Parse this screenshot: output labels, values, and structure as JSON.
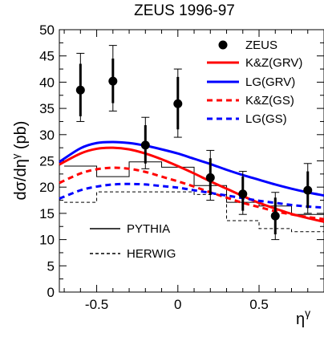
{
  "chart_data": {
    "type": "line",
    "title": "ZEUS 1996-97",
    "xlabel": "η^γ",
    "ylabel": "dσ/dη^γ  (pb)",
    "xlim": [
      -0.73,
      0.9
    ],
    "ylim": [
      0,
      50
    ],
    "x_ticks": [
      -0.5,
      0,
      0.5
    ],
    "x_tick_labels": [
      "-0.5",
      "0",
      "0.5"
    ],
    "y_ticks": [
      0,
      5,
      10,
      15,
      20,
      25,
      30,
      35,
      40,
      45,
      50
    ],
    "y_tick_labels": [
      "0",
      "5",
      "10",
      "15",
      "20",
      "25",
      "30",
      "35",
      "40",
      "45",
      "50"
    ],
    "grid": false,
    "legend_position": "top-right",
    "data_points": {
      "name": "ZEUS",
      "color": "#000000",
      "points": [
        {
          "x": -0.6,
          "y": 38.5,
          "stat_lo": 33.5,
          "stat_hi": 43.5,
          "tot_lo": 32.5,
          "tot_hi": 45.5
        },
        {
          "x": -0.4,
          "y": 40.2,
          "stat_lo": 36.0,
          "stat_hi": 44.5,
          "tot_lo": 34.5,
          "tot_hi": 47.0
        },
        {
          "x": -0.2,
          "y": 28.0,
          "stat_lo": 24.5,
          "stat_hi": 31.8,
          "tot_lo": 23.5,
          "tot_hi": 33.3
        },
        {
          "x": 0.0,
          "y": 35.9,
          "stat_lo": 31.0,
          "stat_hi": 41.0,
          "tot_lo": 29.5,
          "tot_hi": 42.5
        },
        {
          "x": 0.2,
          "y": 21.8,
          "stat_lo": 18.5,
          "stat_hi": 25.5,
          "tot_lo": 17.5,
          "tot_hi": 27.0
        },
        {
          "x": 0.4,
          "y": 18.7,
          "stat_lo": 15.5,
          "stat_hi": 22.0,
          "tot_lo": 14.8,
          "tot_hi": 23.0
        },
        {
          "x": 0.6,
          "y": 14.5,
          "stat_lo": 11.0,
          "stat_hi": 18.0,
          "tot_lo": 10.0,
          "tot_hi": 19.0
        },
        {
          "x": 0.8,
          "y": 19.4,
          "stat_lo": 16.0,
          "stat_hi": 23.0,
          "tot_lo": 15.0,
          "tot_hi": 24.5
        }
      ]
    },
    "curves": [
      {
        "name": "K&Z(GRV)",
        "color": "#ff0000",
        "style": "solid",
        "x": [
          -0.73,
          -0.6,
          -0.5,
          -0.4,
          -0.3,
          -0.2,
          -0.1,
          0.0,
          0.1,
          0.2,
          0.3,
          0.4,
          0.5,
          0.6,
          0.7,
          0.8,
          0.9
        ],
        "y": [
          24.3,
          26.4,
          27.3,
          27.5,
          27.2,
          26.4,
          25.3,
          24.0,
          22.6,
          21.1,
          19.7,
          18.3,
          17.0,
          15.9,
          14.9,
          14.1,
          13.4
        ]
      },
      {
        "name": "LG(GRV)",
        "color": "#0000ff",
        "style": "solid",
        "x": [
          -0.73,
          -0.6,
          -0.5,
          -0.4,
          -0.3,
          -0.2,
          -0.1,
          0.0,
          0.1,
          0.2,
          0.3,
          0.4,
          0.5,
          0.6,
          0.7,
          0.8,
          0.9
        ],
        "y": [
          24.8,
          27.4,
          28.4,
          28.6,
          28.4,
          27.9,
          27.2,
          26.4,
          25.4,
          24.4,
          23.3,
          22.3,
          21.4,
          20.5,
          19.7,
          19.0,
          18.4
        ]
      },
      {
        "name": "K&Z(GS)",
        "color": "#ff0000",
        "style": "dashed",
        "x": [
          -0.73,
          -0.6,
          -0.5,
          -0.4,
          -0.3,
          -0.2,
          -0.1,
          0.0,
          0.1,
          0.2,
          0.3,
          0.4,
          0.5,
          0.6,
          0.7,
          0.8,
          0.9
        ],
        "y": [
          20.8,
          22.6,
          23.4,
          23.7,
          23.5,
          22.9,
          22.0,
          21.1,
          20.1,
          19.0,
          18.0,
          17.0,
          16.2,
          15.4,
          14.8,
          14.3,
          13.9
        ]
      },
      {
        "name": "LG(GS)",
        "color": "#0000ff",
        "style": "dashed",
        "x": [
          -0.73,
          -0.6,
          -0.5,
          -0.4,
          -0.3,
          -0.2,
          -0.1,
          0.0,
          0.1,
          0.2,
          0.3,
          0.4,
          0.5,
          0.6,
          0.7,
          0.8,
          0.9
        ],
        "y": [
          17.8,
          19.4,
          20.1,
          20.5,
          20.6,
          20.5,
          20.2,
          19.9,
          19.4,
          18.9,
          18.4,
          17.9,
          17.4,
          17.0,
          16.6,
          16.3,
          16.1
        ]
      }
    ],
    "histograms": [
      {
        "name": "PYTHIA",
        "color": "#000000",
        "style": "solid",
        "edges": [
          -0.7,
          -0.5,
          -0.3,
          -0.1,
          0.1,
          0.3,
          0.5,
          0.7,
          0.9
        ],
        "values": [
          24.0,
          22.0,
          24.8,
          23.8,
          20.3,
          17.1,
          16.4,
          14.8
        ]
      },
      {
        "name": "HERWIG",
        "color": "#000000",
        "style": "dashed",
        "edges": [
          -0.7,
          -0.5,
          -0.3,
          -0.1,
          0.1,
          0.3,
          0.5,
          0.7,
          0.9
        ],
        "values": [
          17.1,
          19.1,
          19.1,
          19.1,
          18.6,
          13.6,
          12.1,
          11.5
        ]
      }
    ],
    "legend_entries": [
      {
        "label": "ZEUS",
        "marker": "dot"
      },
      {
        "label": "K&Z(GRV)",
        "marker": "line"
      },
      {
        "label": "LG(GRV)",
        "marker": "line"
      },
      {
        "label": "K&Z(GS)",
        "marker": "dash"
      },
      {
        "label": "LG(GS)",
        "marker": "dash"
      },
      {
        "label": "PYTHIA",
        "marker": "line"
      },
      {
        "label": "HERWIG",
        "marker": "dash"
      }
    ]
  }
}
